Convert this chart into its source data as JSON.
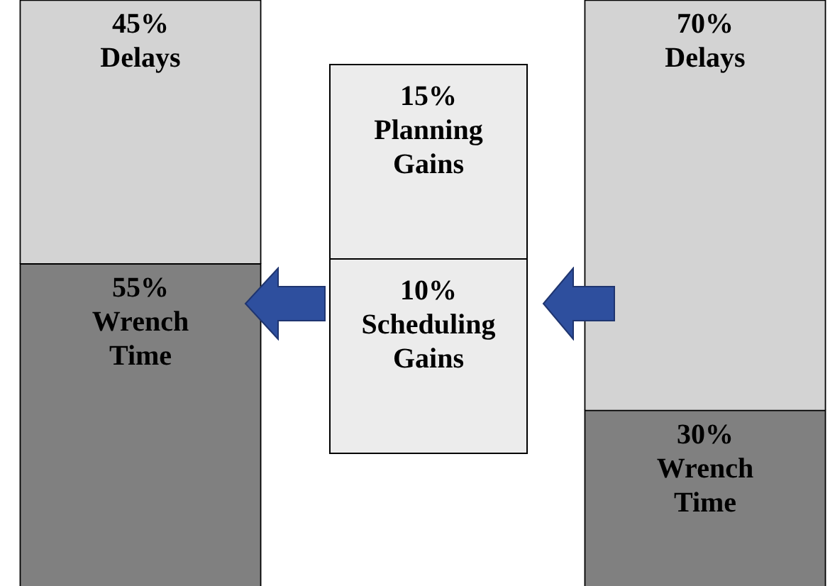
{
  "chart_data": {
    "type": "bar",
    "stacked": true,
    "categories": [
      null,
      null
    ],
    "ylim": [
      0,
      100
    ],
    "tick_labels": false,
    "series": [
      {
        "name": "Wrench Time",
        "color": "#808080",
        "values": [
          55,
          30
        ],
        "value_labels": [
          "55%",
          "30%"
        ]
      },
      {
        "name": "Delays",
        "color": "#d3d3d3",
        "values": [
          45,
          70
        ],
        "value_labels": [
          "45%",
          "70%"
        ]
      }
    ],
    "annotations": [
      "15% Planning Gains",
      "10% Scheduling Gains"
    ]
  }
}
